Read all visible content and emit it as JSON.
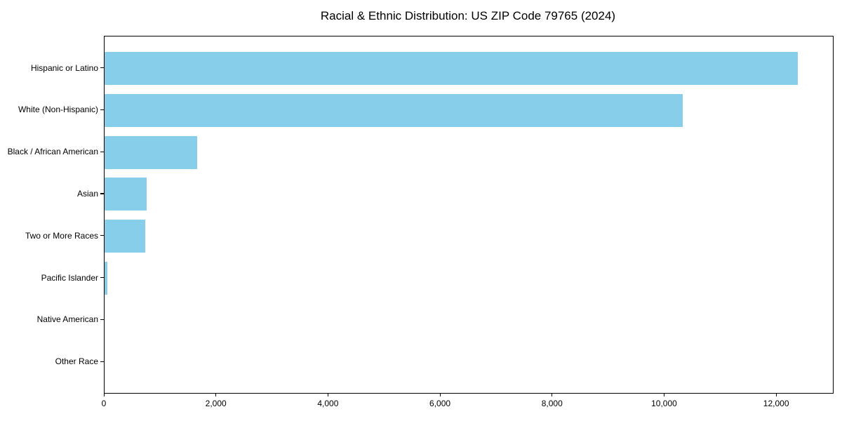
{
  "chart_data": {
    "type": "bar",
    "orientation": "horizontal",
    "title": "Racial & Ethnic Distribution: US ZIP Code 79765 (2024)",
    "categories": [
      "Hispanic or Latino",
      "White (Non-Hispanic)",
      "Black / African American",
      "Asian",
      "Two or More Races",
      "Pacific Islander",
      "Native American",
      "Other Race"
    ],
    "values": [
      12370,
      10320,
      1650,
      755,
      725,
      55,
      0,
      0
    ],
    "xlabel": "",
    "ylabel": "",
    "xlim": [
      0,
      13000
    ],
    "x_ticks": [
      0,
      2000,
      4000,
      6000,
      8000,
      10000,
      12000
    ],
    "x_tick_labels": [
      "0",
      "2,000",
      "4,000",
      "6,000",
      "8,000",
      "10,000",
      "12,000"
    ],
    "bar_color": "#87CEEB",
    "axis_color": "#000000",
    "text_color": "#000000",
    "background_color": "#ffffff",
    "grid": false,
    "legend": null
  }
}
